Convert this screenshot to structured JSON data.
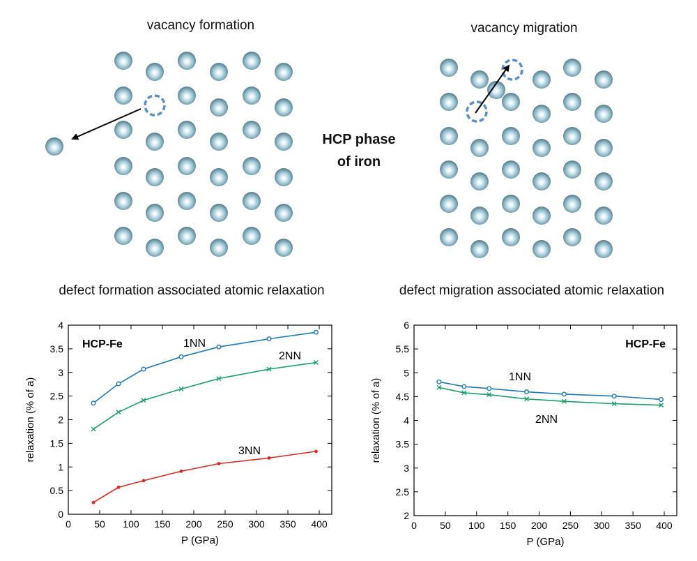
{
  "panels": {
    "formation_title": "vacancy formation",
    "migration_title": "vacancy migration",
    "phase_label_line1": "HCP phase",
    "phase_label_line2": "of iron"
  },
  "colors": {
    "atom": "#8fb8c7",
    "vacancy": "#5b8fc4",
    "series_1nn": "#1f77b4",
    "series_2nn": "#1a9e6a",
    "series_3nn": "#d62a1f"
  },
  "chart_data": [
    {
      "type": "line",
      "title": "defect formation associated atomic relaxation",
      "xlabel": "P (GPa)",
      "ylabel": "relaxation (% of a)",
      "annotation": "HCP-Fe",
      "xlim": [
        0,
        420
      ],
      "ylim": [
        0,
        4
      ],
      "xticks": [
        0,
        50,
        100,
        150,
        200,
        250,
        300,
        350,
        400
      ],
      "yticks": [
        0,
        0.5,
        1,
        1.5,
        2,
        2.5,
        3,
        3.5,
        4
      ],
      "ytick_labels": [
        "0",
        "0.5",
        "1",
        "1.5",
        "2",
        "2.5",
        "3",
        "3.5",
        "4"
      ],
      "grid": false,
      "series": [
        {
          "name": "1NN",
          "color": "#1f77b4",
          "marker": "circle",
          "x": [
            40,
            80,
            120,
            180,
            240,
            320,
            395
          ],
          "values": [
            2.35,
            2.76,
            3.07,
            3.33,
            3.54,
            3.71,
            3.85
          ]
        },
        {
          "name": "2NN",
          "color": "#1a9e6a",
          "marker": "x",
          "x": [
            40,
            80,
            120,
            180,
            240,
            320,
            395
          ],
          "values": [
            1.8,
            2.16,
            2.41,
            2.65,
            2.87,
            3.07,
            3.21
          ]
        },
        {
          "name": "3NN",
          "color": "#d62a1f",
          "marker": "dot",
          "x": [
            40,
            80,
            120,
            180,
            240,
            320,
            395
          ],
          "values": [
            0.25,
            0.57,
            0.71,
            0.91,
            1.07,
            1.19,
            1.33
          ]
        }
      ]
    },
    {
      "type": "line",
      "title": "defect migration associated atomic relaxation",
      "xlabel": "P (GPa)",
      "ylabel": "relaxation (% of a)",
      "annotation": "HCP-Fe",
      "xlim": [
        0,
        420
      ],
      "ylim": [
        2,
        6
      ],
      "xticks": [
        0,
        50,
        100,
        150,
        200,
        250,
        300,
        350,
        400
      ],
      "yticks": [
        2,
        2.5,
        3,
        3.5,
        4,
        4.5,
        5,
        5.5,
        6
      ],
      "ytick_labels": [
        "2",
        "2.5",
        "3",
        "3.5",
        "4",
        "4.5",
        "5",
        "5.5",
        "6"
      ],
      "grid": false,
      "series": [
        {
          "name": "1NN",
          "color": "#1f77b4",
          "marker": "circle",
          "x": [
            40,
            80,
            120,
            180,
            240,
            320,
            395
          ],
          "values": [
            4.81,
            4.71,
            4.67,
            4.6,
            4.55,
            4.51,
            4.44
          ]
        },
        {
          "name": "2NN",
          "color": "#1a9e6a",
          "marker": "x",
          "x": [
            40,
            80,
            120,
            180,
            240,
            320,
            395
          ],
          "values": [
            4.69,
            4.58,
            4.54,
            4.45,
            4.4,
            4.35,
            4.32
          ]
        }
      ]
    }
  ]
}
